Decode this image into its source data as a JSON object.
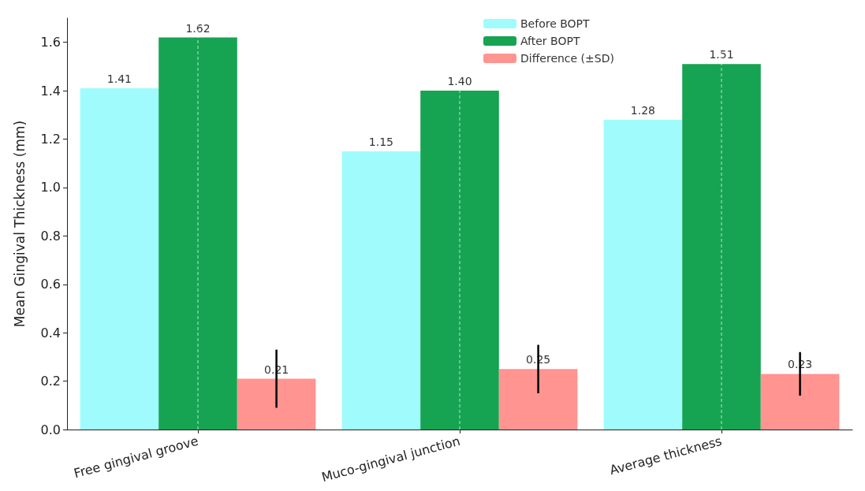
{
  "chart_data": {
    "type": "bar",
    "ylabel": "Mean Gingival Thickness (mm)",
    "categories": [
      "Free gingival groove",
      "Muco-gingival junction",
      "Average thickness"
    ],
    "series": [
      {
        "name": "Before BOPT",
        "color": "#a0fcfc",
        "values": [
          1.41,
          1.15,
          1.28
        ],
        "value_labels": [
          "1.41",
          "1.15",
          "1.28"
        ]
      },
      {
        "name": "After BOPT",
        "color": "#16a452",
        "values": [
          1.62,
          1.4,
          1.51
        ],
        "value_labels": [
          "1.62",
          "1.40",
          "1.51"
        ]
      },
      {
        "name": "Difference (±SD)",
        "color": "#ff9490",
        "values": [
          0.21,
          0.25,
          0.23
        ],
        "value_labels": [
          "0.21",
          "0.25",
          "0.23"
        ],
        "errors": [
          0.12,
          0.1,
          0.09
        ]
      }
    ],
    "ylim": [
      0,
      1.7
    ],
    "yticks": [
      {
        "value": 0,
        "label": "0.0"
      },
      0.2,
      0.4,
      0.6,
      0.8,
      {
        "value": 1,
        "label": "1.0"
      },
      1.2,
      1.4,
      1.6
    ],
    "grid": true,
    "legend": "top"
  }
}
